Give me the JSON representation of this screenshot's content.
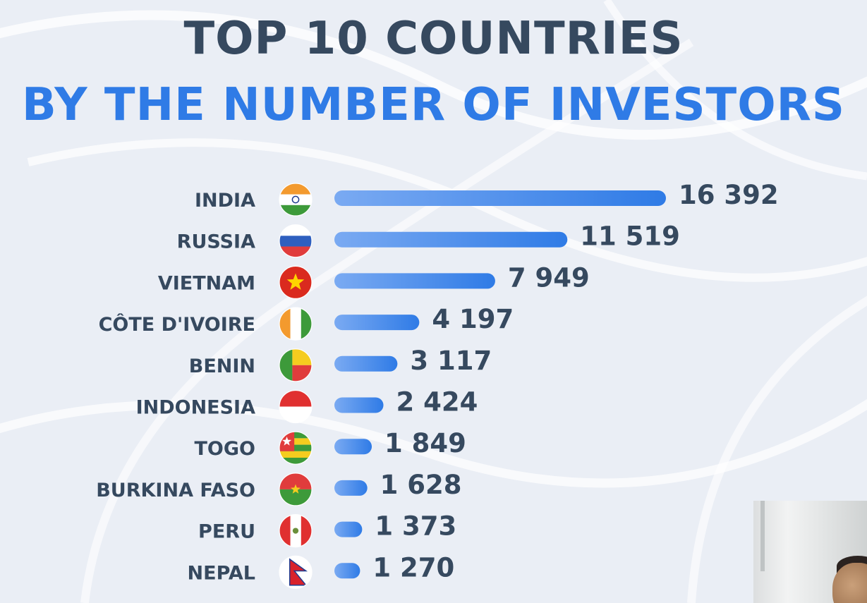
{
  "title_line1": "TOP 10 COUNTRIES",
  "title_line2": "BY THE NUMBER OF INVESTORS",
  "colors": {
    "title_dark": "#36495f",
    "title_accent": "#2f7be6",
    "bar_start": "#7aaaf2",
    "bar_end": "#2f7be6",
    "text": "#36495f"
  },
  "chart_data": {
    "type": "bar",
    "orientation": "horizontal",
    "title": "TOP 10 COUNTRIES BY THE NUMBER OF INVESTORS",
    "categories": [
      "INDIA",
      "RUSSIA",
      "VIETNAM",
      "CÔTE D'IVOIRE",
      "BENIN",
      "INDONESIA",
      "TOGO",
      "BURKINA FASO",
      "PERU",
      "NEPAL"
    ],
    "values": [
      16392,
      11519,
      7949,
      4197,
      3117,
      2424,
      1849,
      1628,
      1373,
      1270
    ],
    "value_labels": [
      "16 392",
      "11 519",
      "7 949",
      "4 197",
      "3 117",
      "2 424",
      "1 849",
      "1 628",
      "1 373",
      "1 270"
    ],
    "flags": [
      "india-flag",
      "russia-flag",
      "vietnam-flag",
      "cote-divoire-flag",
      "benin-flag",
      "indonesia-flag",
      "togo-flag",
      "burkina-faso-flag",
      "peru-flag",
      "nepal-flag"
    ],
    "grid": false,
    "legend": "none"
  }
}
